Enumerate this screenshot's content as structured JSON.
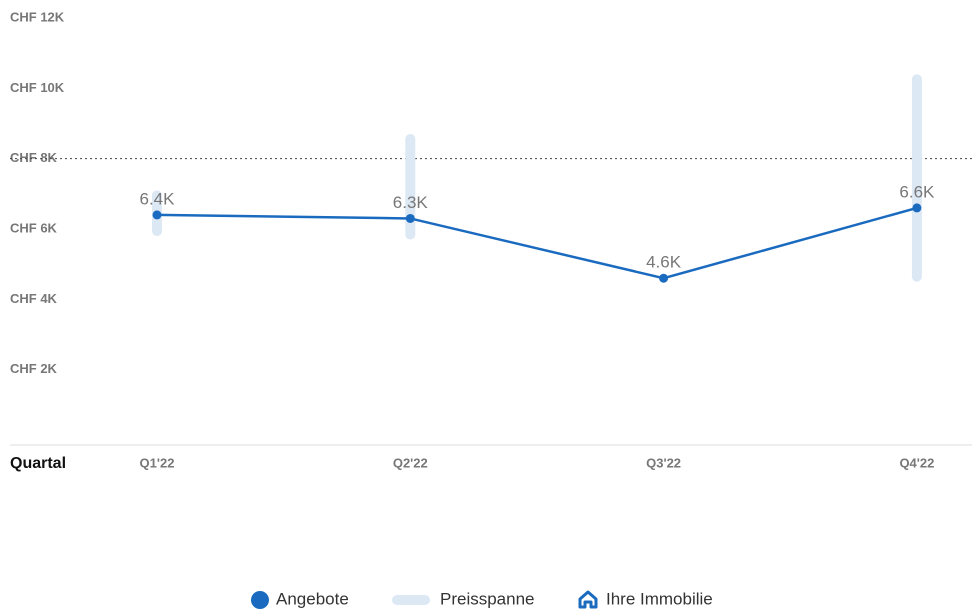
{
  "chart_data": {
    "type": "line",
    "x_label": "Quartal",
    "categories": [
      "Q1'22",
      "Q2'22",
      "Q3'22",
      "Q4'22"
    ],
    "series": [
      {
        "name": "Angebote",
        "color": "#1a6bbf",
        "values": [
          6400,
          6300,
          4600,
          6600
        ],
        "value_labels": [
          "6.4K",
          "6.3K",
          "4.6K",
          "6.6K"
        ]
      }
    ],
    "range": {
      "name": "Preisspanne",
      "color": "#dde8f5",
      "low": [
        5800,
        5700,
        null,
        4500
      ],
      "high": [
        7100,
        8700,
        null,
        10400
      ]
    },
    "reference": {
      "name": "Ihre Immobilie",
      "value": 8000,
      "color": "#1a6bbf"
    },
    "ylim": [
      0,
      12000
    ],
    "yticks": [
      {
        "value": 2000,
        "label": "CHF 2K"
      },
      {
        "value": 4000,
        "label": "CHF 4K"
      },
      {
        "value": 6000,
        "label": "CHF 6K"
      },
      {
        "value": 8000,
        "label": "CHF 8K"
      },
      {
        "value": 10000,
        "label": "CHF 10K"
      },
      {
        "value": 12000,
        "label": "CHF 12K"
      }
    ]
  }
}
